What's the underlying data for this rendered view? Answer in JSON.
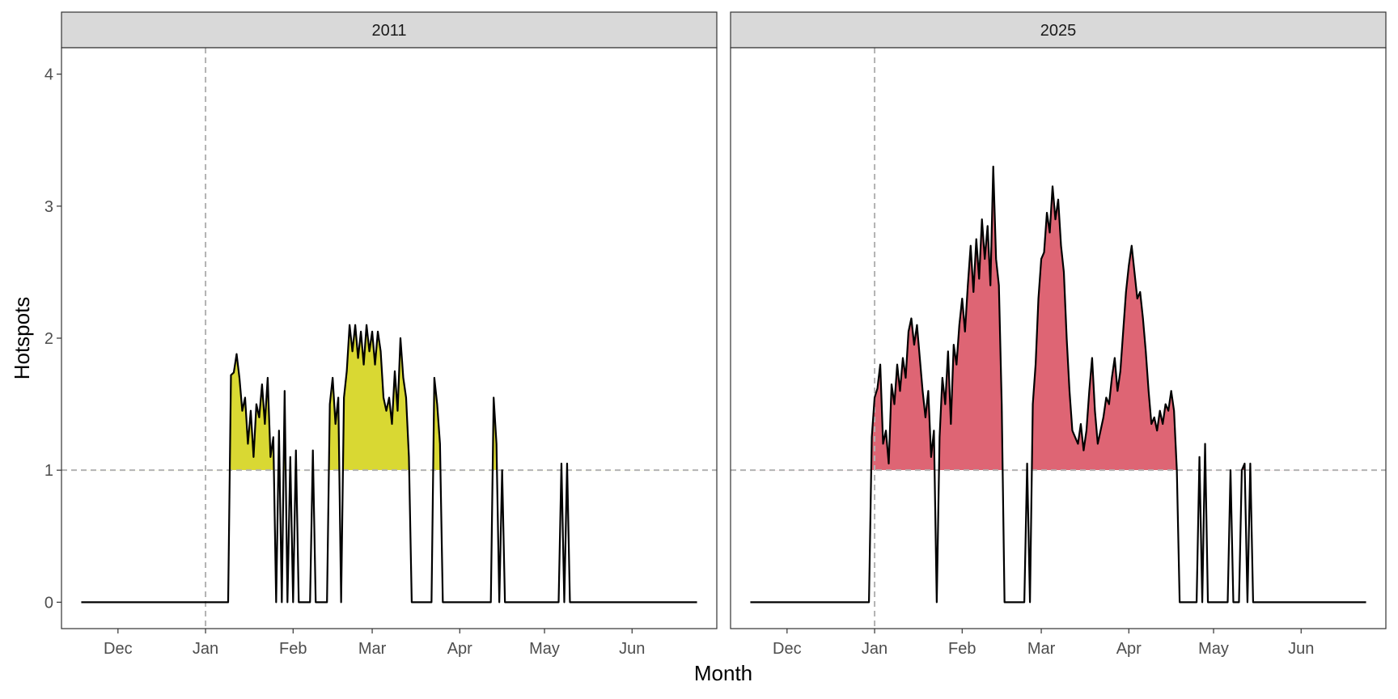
{
  "chart_data": {
    "type": "area",
    "xlabel": "Month",
    "ylabel": "Hotspots",
    "ylim": [
      -0.2,
      4.2
    ],
    "y_ticks": [
      0,
      1,
      2,
      3,
      4
    ],
    "threshold": 1,
    "x_ticks": [
      "Dec",
      "Jan",
      "Feb",
      "Mar",
      "Apr",
      "May",
      "Jun"
    ],
    "grid": false,
    "legend": "none",
    "reference_lines": {
      "vertical_at": "Jan",
      "horizontal_at": 1,
      "style": "dashed",
      "color": "#b3b3b3"
    },
    "panels": [
      {
        "title": "2011",
        "fill_color": "#d9d833",
        "x_range_days": [
          -44,
          174
        ],
        "series": [
          [
            -44,
            0
          ],
          [
            8,
            0
          ],
          [
            9,
            1.72
          ],
          [
            10,
            1.74
          ],
          [
            11,
            1.88
          ],
          [
            12,
            1.7
          ],
          [
            13,
            1.45
          ],
          [
            14,
            1.55
          ],
          [
            15,
            1.2
          ],
          [
            16,
            1.45
          ],
          [
            17,
            1.1
          ],
          [
            18,
            1.5
          ],
          [
            19,
            1.4
          ],
          [
            20,
            1.65
          ],
          [
            21,
            1.35
          ],
          [
            22,
            1.7
          ],
          [
            23,
            1.1
          ],
          [
            24,
            1.25
          ],
          [
            25,
            0
          ],
          [
            26,
            1.3
          ],
          [
            27,
            0
          ],
          [
            28,
            1.6
          ],
          [
            29,
            0
          ],
          [
            30,
            1.1
          ],
          [
            31,
            0
          ],
          [
            32,
            1.15
          ],
          [
            33,
            0
          ],
          [
            37,
            0
          ],
          [
            38,
            1.15
          ],
          [
            39,
            0
          ],
          [
            43,
            0
          ],
          [
            44,
            1.5
          ],
          [
            45,
            1.7
          ],
          [
            46,
            1.35
          ],
          [
            47,
            1.55
          ],
          [
            48,
            0
          ],
          [
            49,
            1.55
          ],
          [
            50,
            1.75
          ],
          [
            51,
            2.1
          ],
          [
            52,
            1.9
          ],
          [
            53,
            2.1
          ],
          [
            54,
            1.85
          ],
          [
            55,
            2.05
          ],
          [
            56,
            1.8
          ],
          [
            57,
            2.1
          ],
          [
            58,
            1.9
          ],
          [
            59,
            2.05
          ],
          [
            60,
            1.8
          ],
          [
            61,
            2.05
          ],
          [
            62,
            1.9
          ],
          [
            63,
            1.55
          ],
          [
            64,
            1.45
          ],
          [
            65,
            1.55
          ],
          [
            66,
            1.35
          ],
          [
            67,
            1.75
          ],
          [
            68,
            1.45
          ],
          [
            69,
            2.0
          ],
          [
            70,
            1.7
          ],
          [
            71,
            1.55
          ],
          [
            72,
            1.1
          ],
          [
            73,
            0
          ],
          [
            74,
            0
          ],
          [
            80,
            0
          ],
          [
            81,
            1.7
          ],
          [
            82,
            1.5
          ],
          [
            83,
            1.2
          ],
          [
            84,
            0
          ],
          [
            85,
            0
          ],
          [
            101,
            0
          ],
          [
            102,
            1.55
          ],
          [
            103,
            1.2
          ],
          [
            104,
            0
          ],
          [
            105,
            1.0
          ],
          [
            106,
            0
          ],
          [
            125,
            0
          ],
          [
            126,
            1.05
          ],
          [
            127,
            0
          ],
          [
            128,
            1.05
          ],
          [
            129,
            0
          ],
          [
            174,
            0
          ]
        ]
      },
      {
        "title": "2025",
        "fill_color": "#de6574",
        "x_range_days": [
          -44,
          174
        ],
        "series": [
          [
            -44,
            0
          ],
          [
            -2,
            0
          ],
          [
            -1,
            1.25
          ],
          [
            0,
            1.55
          ],
          [
            1,
            1.62
          ],
          [
            2,
            1.8
          ],
          [
            3,
            1.2
          ],
          [
            4,
            1.3
          ],
          [
            5,
            1.05
          ],
          [
            6,
            1.65
          ],
          [
            7,
            1.5
          ],
          [
            8,
            1.8
          ],
          [
            9,
            1.6
          ],
          [
            10,
            1.85
          ],
          [
            11,
            1.7
          ],
          [
            12,
            2.05
          ],
          [
            13,
            2.15
          ],
          [
            14,
            1.95
          ],
          [
            15,
            2.1
          ],
          [
            16,
            1.85
          ],
          [
            17,
            1.6
          ],
          [
            18,
            1.4
          ],
          [
            19,
            1.6
          ],
          [
            20,
            1.1
          ],
          [
            21,
            1.3
          ],
          [
            22,
            0
          ],
          [
            23,
            1.25
          ],
          [
            24,
            1.7
          ],
          [
            25,
            1.5
          ],
          [
            26,
            1.9
          ],
          [
            27,
            1.35
          ],
          [
            28,
            1.95
          ],
          [
            29,
            1.8
          ],
          [
            30,
            2.1
          ],
          [
            31,
            2.3
          ],
          [
            32,
            2.05
          ],
          [
            33,
            2.4
          ],
          [
            34,
            2.7
          ],
          [
            35,
            2.35
          ],
          [
            36,
            2.75
          ],
          [
            37,
            2.45
          ],
          [
            38,
            2.9
          ],
          [
            39,
            2.6
          ],
          [
            40,
            2.85
          ],
          [
            41,
            2.4
          ],
          [
            42,
            3.3
          ],
          [
            43,
            2.6
          ],
          [
            44,
            2.4
          ],
          [
            45,
            1.5
          ],
          [
            46,
            0
          ],
          [
            53,
            0
          ],
          [
            54,
            1.05
          ],
          [
            55,
            0
          ],
          [
            56,
            1.5
          ],
          [
            57,
            1.8
          ],
          [
            58,
            2.3
          ],
          [
            59,
            2.6
          ],
          [
            60,
            2.65
          ],
          [
            61,
            2.95
          ],
          [
            62,
            2.8
          ],
          [
            63,
            3.15
          ],
          [
            64,
            2.9
          ],
          [
            65,
            3.05
          ],
          [
            66,
            2.7
          ],
          [
            67,
            2.5
          ],
          [
            68,
            2.0
          ],
          [
            69,
            1.6
          ],
          [
            70,
            1.3
          ],
          [
            71,
            1.25
          ],
          [
            72,
            1.2
          ],
          [
            73,
            1.35
          ],
          [
            74,
            1.15
          ],
          [
            75,
            1.3
          ],
          [
            76,
            1.6
          ],
          [
            77,
            1.85
          ],
          [
            78,
            1.45
          ],
          [
            79,
            1.2
          ],
          [
            80,
            1.3
          ],
          [
            81,
            1.4
          ],
          [
            82,
            1.55
          ],
          [
            83,
            1.5
          ],
          [
            84,
            1.7
          ],
          [
            85,
            1.85
          ],
          [
            86,
            1.6
          ],
          [
            87,
            1.75
          ],
          [
            88,
            2.05
          ],
          [
            89,
            2.35
          ],
          [
            90,
            2.55
          ],
          [
            91,
            2.7
          ],
          [
            92,
            2.5
          ],
          [
            93,
            2.3
          ],
          [
            94,
            2.35
          ],
          [
            95,
            2.15
          ],
          [
            96,
            1.9
          ],
          [
            97,
            1.6
          ],
          [
            98,
            1.35
          ],
          [
            99,
            1.4
          ],
          [
            100,
            1.3
          ],
          [
            101,
            1.45
          ],
          [
            102,
            1.35
          ],
          [
            103,
            1.5
          ],
          [
            104,
            1.45
          ],
          [
            105,
            1.6
          ],
          [
            106,
            1.45
          ],
          [
            107,
            1.0
          ],
          [
            108,
            0
          ],
          [
            114,
            0
          ],
          [
            115,
            1.1
          ],
          [
            116,
            0
          ],
          [
            117,
            1.2
          ],
          [
            118,
            0
          ],
          [
            125,
            0
          ],
          [
            126,
            1.0
          ],
          [
            127,
            0
          ],
          [
            129,
            0
          ],
          [
            130,
            1.0
          ],
          [
            131,
            1.05
          ],
          [
            132,
            0
          ],
          [
            133,
            1.05
          ],
          [
            134,
            0
          ],
          [
            174,
            0
          ]
        ]
      }
    ]
  }
}
